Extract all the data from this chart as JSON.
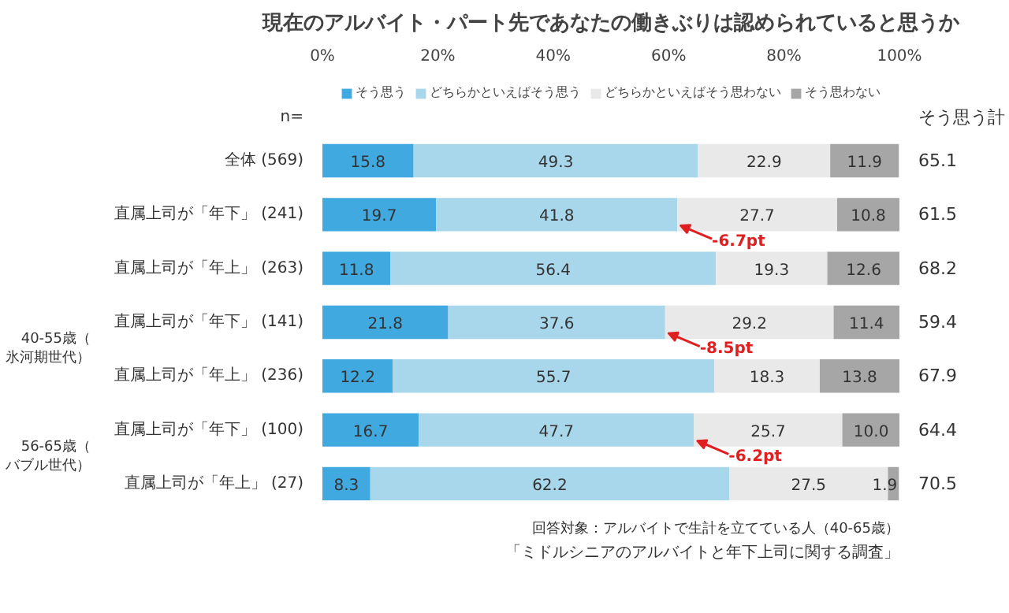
{
  "chart_data": {
    "type": "bar",
    "orientation": "horizontal",
    "stacked": true,
    "title": "現在のアルバイト・パート先であなたの働きぶりは認められていると思うか",
    "categories": [
      "全体 (569)",
      "直属上司が「年下」 (241)",
      "直属上司が「年上」 (263)",
      "直属上司が「年下」 (141)",
      "直属上司が「年上」 (236)",
      "直属上司が「年下」 (100)",
      "直属上司が「年上」 (27)"
    ],
    "series": [
      {
        "name": "そう思う",
        "color": "#3fa9e0",
        "values": [
          15.8,
          19.7,
          11.8,
          21.8,
          12.2,
          16.7,
          8.3
        ]
      },
      {
        "name": "どちらかといえばそう思う",
        "color": "#a8d6ea",
        "values": [
          49.3,
          41.8,
          56.4,
          37.6,
          55.7,
          47.7,
          62.2
        ]
      },
      {
        "name": "どちらかといえばそう思わない",
        "color": "#e9e9e9",
        "values": [
          22.9,
          27.7,
          19.3,
          29.2,
          18.3,
          25.7,
          27.5
        ]
      },
      {
        "name": "そう思わない",
        "color": "#a6a6a6",
        "values": [
          11.9,
          10.8,
          12.6,
          11.4,
          13.8,
          10.0,
          1.9
        ],
        "value_labels": [
          "11.9",
          "10.8",
          "12.6",
          "11.4",
          "13.8",
          "10.0",
          "1.9"
        ]
      }
    ],
    "data_labels": true,
    "xlim": [
      0,
      100
    ],
    "xticks": [
      {
        "value": 0,
        "label": "0%"
      },
      {
        "value": 20,
        "label": "20%"
      },
      {
        "value": 40,
        "label": "40%"
      },
      {
        "value": 60,
        "label": "60%"
      },
      {
        "value": 80,
        "label": "80%"
      },
      {
        "value": 100,
        "label": "100%"
      }
    ],
    "legend": "top",
    "annotations": [
      "n=",
      "そう思う計",
      "40-55歳（氷河期世代）",
      "56-65歳（バブル世代）",
      "65.1",
      "61.5",
      "68.2",
      "59.4",
      "67.9",
      "64.4",
      "70.5",
      {
        "text": "-6.7pt",
        "x": 61.5,
        "y": "直属上司が「年下」 (241)"
      },
      {
        "text": "-8.5pt",
        "x": 59.4,
        "y": "直属上司が「年下」 (141)"
      },
      {
        "text": "-6.2pt",
        "x": 64.4,
        "y": "直属上司が「年下」 (100)"
      },
      "回答対象：アルバイトで生計を立てている人（40-65歳）",
      "「ミドルシニアのアルバイトと年下上司に関する調査」"
    ]
  }
}
